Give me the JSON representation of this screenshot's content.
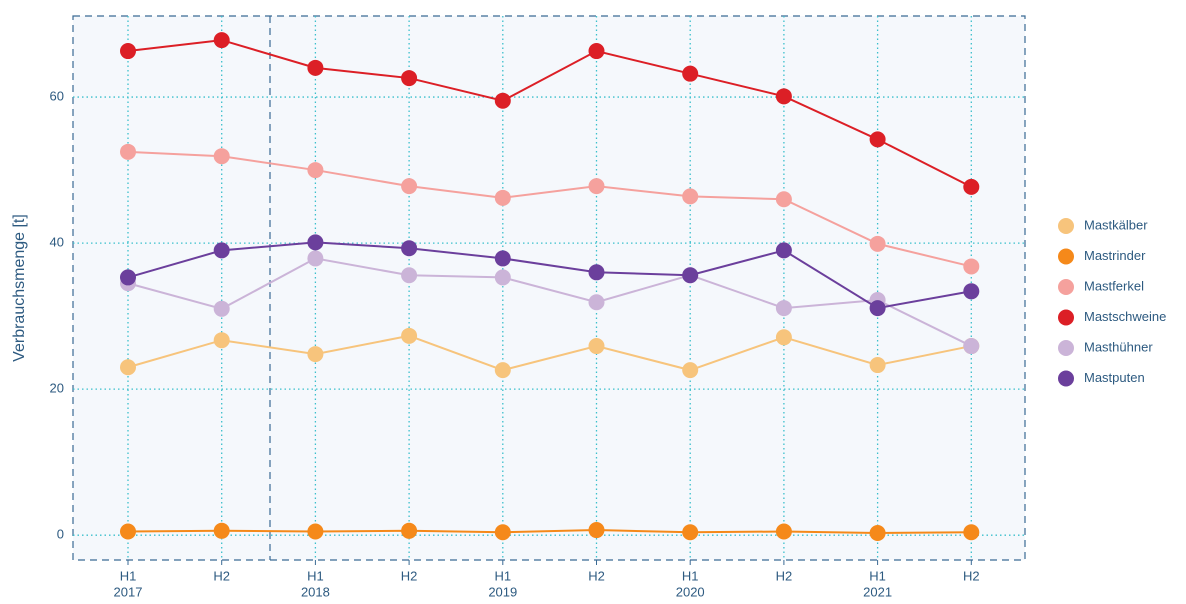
{
  "chart_data": {
    "type": "line",
    "ylabel": "Verbrauchsmenge [t]",
    "categories": [
      [
        "H1",
        "2017"
      ],
      [
        "H2"
      ],
      [
        "H1",
        "2018"
      ],
      [
        "H2"
      ],
      [
        "H1",
        "2019"
      ],
      [
        "H2"
      ],
      [
        "H1",
        "2020"
      ],
      [
        "H2"
      ],
      [
        "H1",
        "2021"
      ],
      [
        "H2"
      ]
    ],
    "series": [
      {
        "name": "Mastkälber",
        "color": "#f7c47c",
        "values": [
          23.0,
          26.7,
          24.8,
          27.3,
          22.6,
          25.9,
          22.6,
          27.1,
          23.3,
          25.9
        ]
      },
      {
        "name": "Mastrinder",
        "color": "#f5891a",
        "values": [
          0.5,
          0.6,
          0.5,
          0.6,
          0.4,
          0.7,
          0.4,
          0.5,
          0.3,
          0.4
        ]
      },
      {
        "name": "Mastferkel",
        "color": "#f5a19d",
        "values": [
          52.5,
          51.9,
          50.0,
          47.8,
          46.2,
          47.8,
          46.4,
          46.0,
          39.9,
          36.8
        ]
      },
      {
        "name": "Mastschweine",
        "color": "#dc1f26",
        "values": [
          66.3,
          67.8,
          64.0,
          62.6,
          59.5,
          66.3,
          63.2,
          60.1,
          54.2,
          47.7
        ]
      },
      {
        "name": "Masthühner",
        "color": "#cbb4d8",
        "values": [
          34.5,
          31.0,
          37.9,
          35.6,
          35.3,
          31.9,
          35.6,
          31.1,
          32.2,
          25.9
        ]
      },
      {
        "name": "Mastputen",
        "color": "#6b3f9c",
        "values": [
          35.3,
          39.0,
          40.1,
          39.3,
          37.9,
          36.0,
          35.6,
          39.0,
          31.1,
          33.4
        ]
      }
    ],
    "ylim": [
      -3.4,
      71.1
    ],
    "yticks": [
      0,
      20,
      40,
      60
    ],
    "grid": true,
    "legend": "right"
  }
}
